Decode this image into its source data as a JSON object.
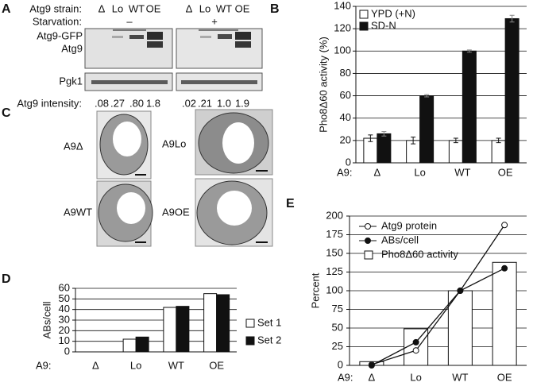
{
  "panel_labels": [
    "A",
    "B",
    "C",
    "D",
    "E"
  ],
  "blot": {
    "strain_label": "Atg9 strain:",
    "lanes": [
      "Δ",
      "Lo",
      "WT",
      "OE",
      "Δ",
      "Lo",
      "WT",
      "OE"
    ],
    "starvation_label": "Starvation:",
    "starvation": [
      "–",
      "+"
    ],
    "band_labels": [
      "Atg9-GFP",
      "Atg9"
    ],
    "loading_label": "Pgk1",
    "intensity_label": "Atg9 intensity:",
    "intensities": [
      ".08",
      ".27",
      ".80",
      "1.8",
      ".02",
      ".21",
      "1.0",
      "1.9"
    ]
  },
  "micrographs": {
    "labels": [
      "A9Δ",
      "A9Lo",
      "A9WT",
      "A9OE"
    ]
  },
  "chart_data": [
    {
      "type": "bar",
      "ylabel": "Pho8Δ60 activity (%)",
      "x_label": "A9:",
      "categories": [
        "Δ",
        "Lo",
        "WT",
        "OE"
      ],
      "series": [
        {
          "name": "YPD (+N)",
          "color": "#ffffff",
          "type": "bar",
          "values": [
            22,
            20,
            20,
            20
          ],
          "errors": [
            3,
            3,
            2,
            2
          ]
        },
        {
          "name": "SD-N",
          "color": "#111111",
          "type": "bar",
          "values": [
            26,
            60,
            100,
            129
          ],
          "errors": [
            2,
            1,
            1,
            3
          ]
        }
      ],
      "ylim": [
        0,
        140
      ],
      "yticks": [
        0,
        20,
        40,
        60,
        80,
        100,
        120,
        140
      ],
      "grid": true,
      "legend": "upper left"
    },
    {
      "type": "bar",
      "ylabel": "ABs/cell",
      "x_label": "A9:",
      "categories": [
        "Δ",
        "Lo",
        "WT",
        "OE"
      ],
      "series": [
        {
          "name": "Set 1",
          "color": "#ffffff",
          "type": "bar",
          "values": [
            0,
            12,
            42,
            55
          ]
        },
        {
          "name": "Set 2",
          "color": "#111111",
          "type": "bar",
          "values": [
            0,
            14,
            43,
            54
          ]
        }
      ],
      "ylim": [
        0,
        60
      ],
      "yticks": [
        0,
        10,
        20,
        30,
        40,
        50,
        60
      ],
      "grid": true,
      "legend": "right"
    },
    {
      "type": "combo",
      "ylabel": "Percent",
      "x_label": "A9:",
      "categories": [
        "Δ",
        "Lo",
        "WT",
        "OE"
      ],
      "series": [
        {
          "name": "Atg9 protein",
          "color": "#111111",
          "marker_fill": "#ffffff",
          "type": "line",
          "values": [
            1,
            20,
            100,
            188
          ]
        },
        {
          "name": "ABs/cell",
          "color": "#111111",
          "marker_fill": "#111111",
          "type": "line",
          "values": [
            0,
            31,
            100,
            130
          ]
        },
        {
          "name": "Pho8Δ60 activity",
          "color": "#ffffff",
          "type": "bar",
          "values": [
            5,
            49,
            100,
            138
          ]
        }
      ],
      "ylim": [
        0,
        200
      ],
      "yticks": [
        0,
        25,
        50,
        75,
        100,
        125,
        150,
        175,
        200
      ],
      "grid": true,
      "legend": "upper left"
    }
  ]
}
